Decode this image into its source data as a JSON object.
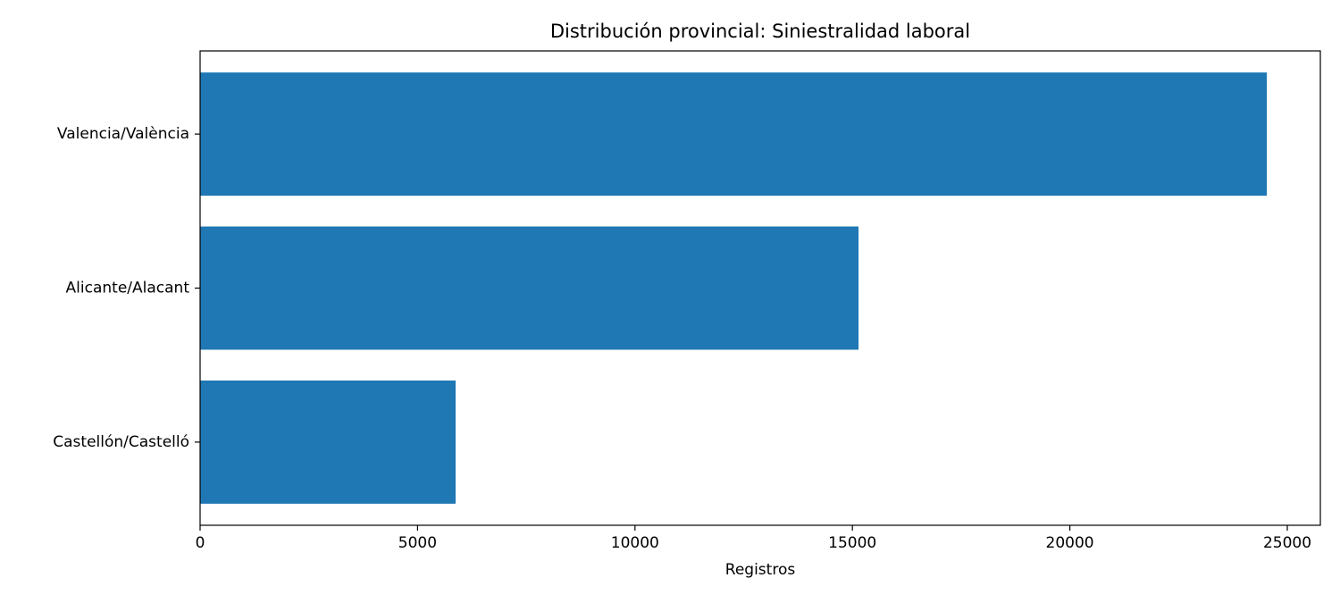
{
  "chart_data": {
    "type": "barh",
    "title": "Distribución provincial: Siniestralidad laboral",
    "x_label": "Registros",
    "categories": [
      "Valencia/València",
      "Alicante/Alacant",
      "Castellón/Castelló"
    ],
    "values": [
      24530,
      15140,
      5875
    ],
    "color": "#1f77b4",
    "xlim": [
      0,
      25760
    ],
    "xticks": [
      0,
      5000,
      10000,
      15000,
      20000,
      25000
    ],
    "grid": false
  }
}
